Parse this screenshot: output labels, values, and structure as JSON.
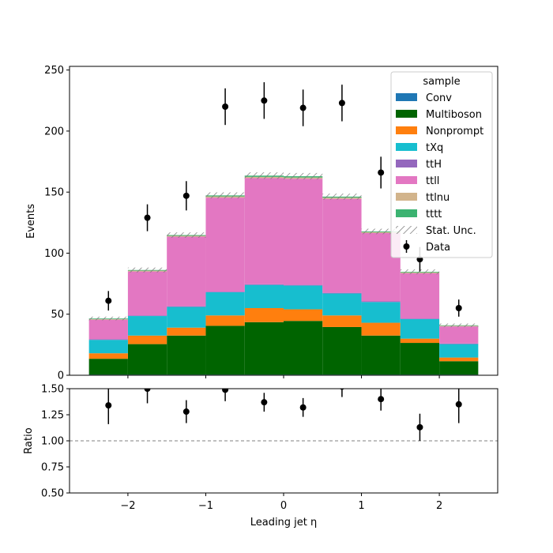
{
  "chart_data": [
    {
      "type": "bar",
      "stacked": true,
      "xlabel": "",
      "ylabel": "Events",
      "xlim": [
        -2.75,
        2.75
      ],
      "ylim": [
        0,
        253
      ],
      "bin_edges": [
        -2.5,
        -2.0,
        -1.5,
        -1.0,
        -0.5,
        0.0,
        0.5,
        1.0,
        1.5,
        2.0,
        2.5
      ],
      "x_ticks": [
        -2,
        -1,
        0,
        1,
        2
      ],
      "y_ticks": [
        0,
        50,
        100,
        150,
        200,
        250
      ],
      "legend_title": "sample",
      "legend_position": "top-right",
      "series": [
        {
          "name": "Conv",
          "color": "#1f77b4",
          "values": [
            0.5,
            0.5,
            0.5,
            0.5,
            0.5,
            0.5,
            0.5,
            0.5,
            0.5,
            0.5
          ]
        },
        {
          "name": "Multiboson",
          "color": "#006400",
          "values": [
            13,
            25,
            32,
            40,
            43,
            44,
            39,
            32,
            26,
            11
          ]
        },
        {
          "name": "Nonprompt",
          "color": "#ff7f0e",
          "values": [
            4.5,
            7,
            6.5,
            8.5,
            11.5,
            9.5,
            9.5,
            10.5,
            3.5,
            3
          ]
        },
        {
          "name": "tXq",
          "color": "#17becf",
          "values": [
            11,
            16,
            17,
            19,
            19,
            19.5,
            18,
            17,
            16,
            11
          ]
        },
        {
          "name": "ttH",
          "color": "#9467bd",
          "values": [
            0.5,
            0.5,
            0.5,
            0.5,
            0.5,
            0.5,
            0.5,
            0.5,
            0.5,
            0.5
          ]
        },
        {
          "name": "ttll",
          "color": "#e377c2",
          "values": [
            16,
            36,
            57,
            77,
            87,
            87,
            77,
            56,
            37,
            14
          ]
        },
        {
          "name": "ttlnu",
          "color": "#d2b48c",
          "values": [
            0.5,
            0.7,
            0.7,
            1.0,
            1.0,
            1.0,
            1.0,
            0.7,
            0.7,
            0.5
          ]
        },
        {
          "name": "tttt",
          "color": "#3cb371",
          "values": [
            0.5,
            0.5,
            0.6,
            0.8,
            1.0,
            1.0,
            0.8,
            0.6,
            0.5,
            0.4
          ]
        }
      ],
      "stat_unc_label": "Stat. Unc.",
      "stat_unc": [
        1.5,
        2.0,
        2.2,
        2.5,
        2.7,
        2.7,
        2.5,
        2.2,
        2.0,
        1.5
      ],
      "data": {
        "name": "Data",
        "x": [
          -2.25,
          -1.75,
          -1.25,
          -0.75,
          -0.25,
          0.25,
          0.75,
          1.25,
          1.75,
          2.25
        ],
        "y": [
          61,
          129,
          147,
          220,
          225,
          219,
          223,
          166,
          95,
          55
        ],
        "yerr": [
          8,
          11,
          12,
          15,
          15,
          15,
          15,
          13,
          10,
          7
        ]
      }
    },
    {
      "type": "scatter",
      "xlabel": "Leading jet  η",
      "ylabel": "Ratio",
      "xlim": [
        -2.75,
        2.75
      ],
      "ylim": [
        0.5,
        1.5
      ],
      "x_ticks": [
        -2,
        -1,
        0,
        1,
        2
      ],
      "x_tick_labels": [
        "−2",
        "−1",
        "0",
        "1",
        "2"
      ],
      "y_ticks": [
        0.5,
        0.75,
        1.0,
        1.25,
        1.5
      ],
      "y_tick_labels": [
        "0.50",
        "0.75",
        "1.00",
        "1.25",
        "1.50"
      ],
      "reference_line": 1.0,
      "x": [
        -2.25,
        -1.75,
        -1.25,
        -0.75,
        -0.25,
        0.25,
        0.75,
        1.25,
        1.75,
        2.25
      ],
      "y": [
        1.34,
        1.5,
        1.28,
        1.49,
        1.37,
        1.32,
        1.52,
        1.4,
        1.13,
        1.35
      ],
      "yerr": [
        0.18,
        0.14,
        0.11,
        0.11,
        0.09,
        0.09,
        0.1,
        0.11,
        0.13,
        0.18
      ]
    }
  ]
}
